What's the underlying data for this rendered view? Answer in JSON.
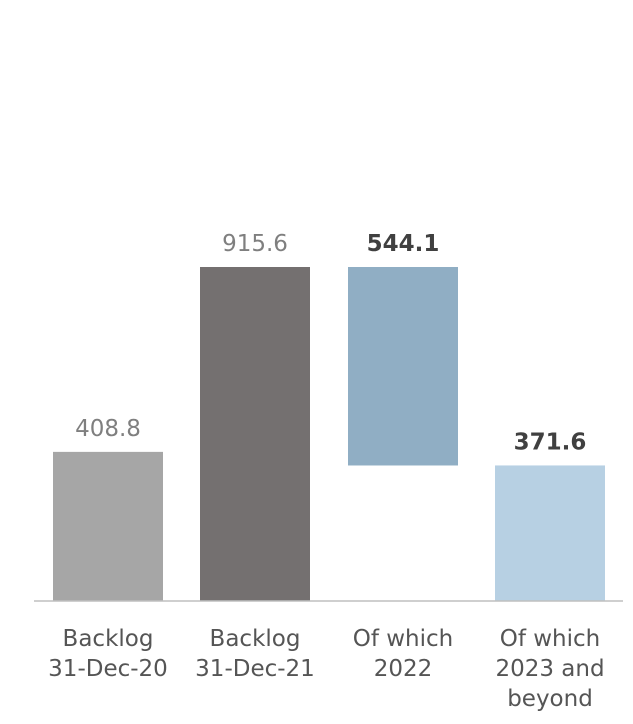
{
  "chart_data": {
    "type": "bar",
    "subtype": "waterfall",
    "title": "",
    "xlabel": "",
    "ylabel": "",
    "ylim": [
      0,
      915.6
    ],
    "grid": false,
    "legend": "none",
    "categories": [
      [
        "Backlog",
        "31-Dec-20"
      ],
      [
        "Backlog",
        "31-Dec-21"
      ],
      [
        "Of which",
        "2022"
      ],
      [
        "Of which",
        "2023 and",
        "beyond"
      ]
    ],
    "bars": [
      {
        "value": 408.8,
        "base": 0,
        "label": "408.8",
        "color": "#a6a6a6",
        "label_color": "#7f7f7f",
        "bold": false
      },
      {
        "value": 915.6,
        "base": 0,
        "label": "915.6",
        "color": "#747070",
        "label_color": "#7f7f7f",
        "bold": false
      },
      {
        "value": 544.1,
        "base": 371.5,
        "label": "544.1",
        "color": "#90aec4",
        "label_color": "#404040",
        "bold": true
      },
      {
        "value": 371.6,
        "base": 0,
        "label": "371.6",
        "color": "#b7d0e3",
        "label_color": "#404040",
        "bold": true
      }
    ],
    "axis_color": "#bfbfbf"
  }
}
